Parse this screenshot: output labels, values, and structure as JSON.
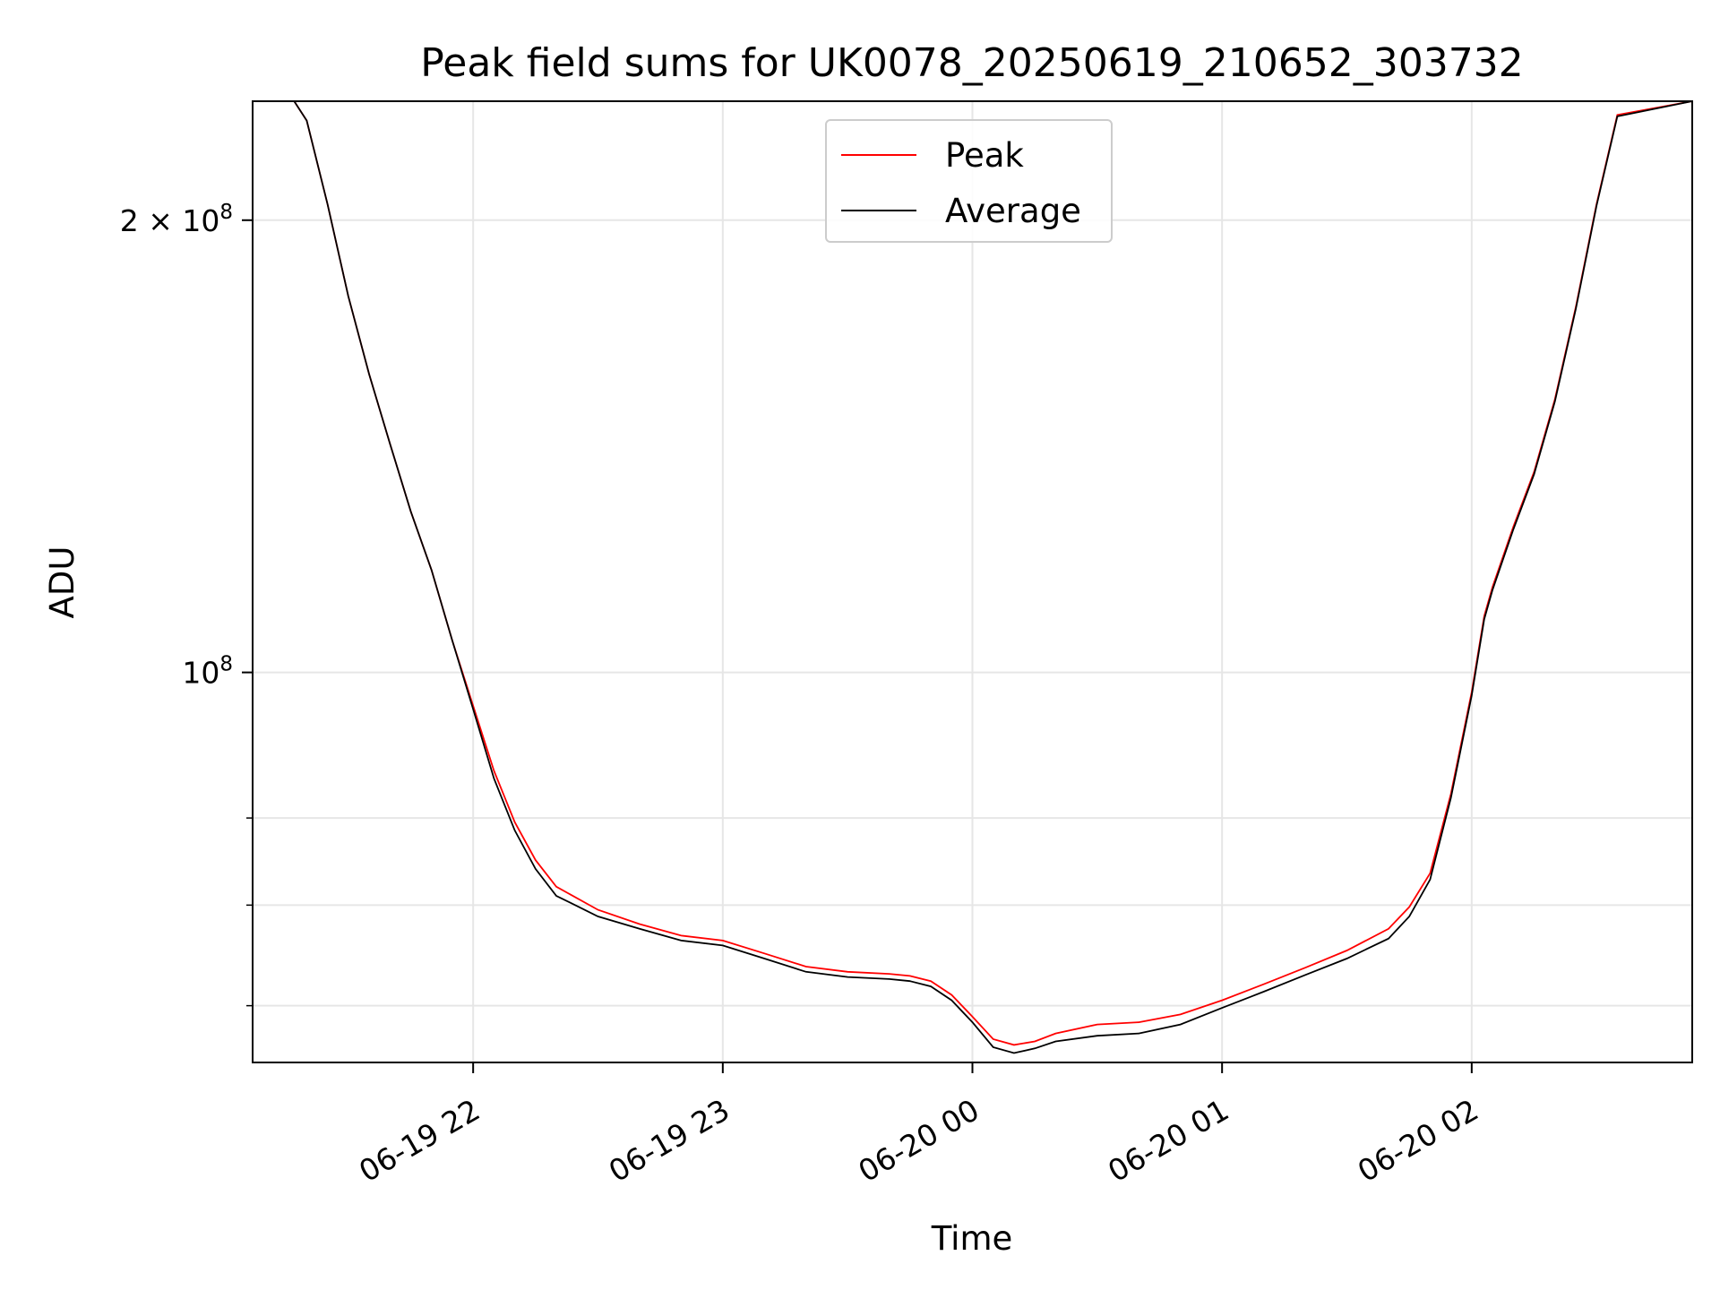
{
  "chart_data": {
    "type": "line",
    "title": "Peak field sums for UK0078_20250619_210652_303732",
    "xlabel": "Time",
    "ylabel": "ADU",
    "yscale": "log",
    "ylim": [
      55000000,
      240000000
    ],
    "xlim": [
      "2025-06-19 21:07",
      "2025-06-20 02:53"
    ],
    "grid": true,
    "legend_position": "top-center",
    "x_ticks": [
      "06-19 22",
      "06-19 23",
      "06-20 00",
      "06-20 01",
      "06-20 02"
    ],
    "y_ticks": [
      "10^8",
      "2×10^8"
    ],
    "series": [
      {
        "name": "Peak",
        "color": "#ff0000",
        "x": [
          "2025-06-19 21:07",
          "2025-06-19 21:17",
          "2025-06-19 21:20",
          "2025-06-19 21:25",
          "2025-06-19 21:30",
          "2025-06-19 21:35",
          "2025-06-19 21:40",
          "2025-06-19 21:45",
          "2025-06-19 21:50",
          "2025-06-19 21:55",
          "2025-06-19 22:00",
          "2025-06-19 22:05",
          "2025-06-19 22:10",
          "2025-06-19 22:15",
          "2025-06-19 22:20",
          "2025-06-19 22:30",
          "2025-06-19 22:40",
          "2025-06-19 22:50",
          "2025-06-19 23:00",
          "2025-06-19 23:10",
          "2025-06-19 23:20",
          "2025-06-19 23:30",
          "2025-06-19 23:40",
          "2025-06-19 23:45",
          "2025-06-19 23:50",
          "2025-06-19 23:55",
          "2025-06-20 00:00",
          "2025-06-20 00:05",
          "2025-06-20 00:10",
          "2025-06-20 00:15",
          "2025-06-20 00:20",
          "2025-06-20 00:30",
          "2025-06-20 00:40",
          "2025-06-20 00:50",
          "2025-06-20 01:00",
          "2025-06-20 01:10",
          "2025-06-20 01:20",
          "2025-06-20 01:30",
          "2025-06-20 01:40",
          "2025-06-20 01:45",
          "2025-06-20 01:50",
          "2025-06-20 01:55",
          "2025-06-20 02:00",
          "2025-06-20 02:03",
          "2025-06-20 02:05",
          "2025-06-20 02:10",
          "2025-06-20 02:15",
          "2025-06-20 02:20",
          "2025-06-20 02:25",
          "2025-06-20 02:30",
          "2025-06-20 02:35",
          "2025-06-20 02:53"
        ],
        "values": [
          240000000,
          240000000,
          233000000,
          205000000,
          178000000,
          158000000,
          142000000,
          128000000,
          117000000,
          105000000,
          95000000,
          86000000,
          79500000,
          75000000,
          72000000,
          69500000,
          68000000,
          66800000,
          66300000,
          65000000,
          63700000,
          63200000,
          63000000,
          62800000,
          62300000,
          61000000,
          59000000,
          57000000,
          56500000,
          56800000,
          57500000,
          58300000,
          58500000,
          59200000,
          60500000,
          62000000,
          63600000,
          65300000,
          67500000,
          69800000,
          73500000,
          83000000,
          97000000,
          109000000,
          114000000,
          125000000,
          136000000,
          152000000,
          175000000,
          205000000,
          235000000,
          240000000
        ]
      },
      {
        "name": "Average",
        "color": "#000000",
        "x": [
          "2025-06-19 21:07",
          "2025-06-19 21:17",
          "2025-06-19 21:20",
          "2025-06-19 21:25",
          "2025-06-19 21:30",
          "2025-06-19 21:35",
          "2025-06-19 21:40",
          "2025-06-19 21:45",
          "2025-06-19 21:50",
          "2025-06-19 21:55",
          "2025-06-19 22:00",
          "2025-06-19 22:05",
          "2025-06-19 22:10",
          "2025-06-19 22:15",
          "2025-06-19 22:20",
          "2025-06-19 22:30",
          "2025-06-19 22:40",
          "2025-06-19 22:50",
          "2025-06-19 23:00",
          "2025-06-19 23:10",
          "2025-06-19 23:20",
          "2025-06-19 23:30",
          "2025-06-19 23:40",
          "2025-06-19 23:45",
          "2025-06-19 23:50",
          "2025-06-19 23:55",
          "2025-06-20 00:00",
          "2025-06-20 00:05",
          "2025-06-20 00:10",
          "2025-06-20 00:15",
          "2025-06-20 00:20",
          "2025-06-20 00:30",
          "2025-06-20 00:40",
          "2025-06-20 00:50",
          "2025-06-20 01:00",
          "2025-06-20 01:10",
          "2025-06-20 01:20",
          "2025-06-20 01:30",
          "2025-06-20 01:40",
          "2025-06-20 01:45",
          "2025-06-20 01:50",
          "2025-06-20 01:55",
          "2025-06-20 02:00",
          "2025-06-20 02:03",
          "2025-06-20 02:05",
          "2025-06-20 02:10",
          "2025-06-20 02:15",
          "2025-06-20 02:20",
          "2025-06-20 02:25",
          "2025-06-20 02:30",
          "2025-06-20 02:35",
          "2025-06-20 02:53"
        ],
        "values": [
          240000000,
          240000000,
          233000000,
          205000000,
          178000000,
          158000000,
          142000000,
          128000000,
          117000000,
          105000000,
          94500000,
          85000000,
          78500000,
          74000000,
          71000000,
          68800000,
          67500000,
          66300000,
          65800000,
          64500000,
          63200000,
          62700000,
          62500000,
          62300000,
          61800000,
          60500000,
          58500000,
          56300000,
          55800000,
          56200000,
          56800000,
          57300000,
          57500000,
          58300000,
          59800000,
          61300000,
          62900000,
          64500000,
          66500000,
          68800000,
          72800000,
          82500000,
          96500000,
          108500000,
          113500000,
          124500000,
          135500000,
          151500000,
          174500000,
          204500000,
          234500000,
          240000000
        ]
      }
    ]
  }
}
